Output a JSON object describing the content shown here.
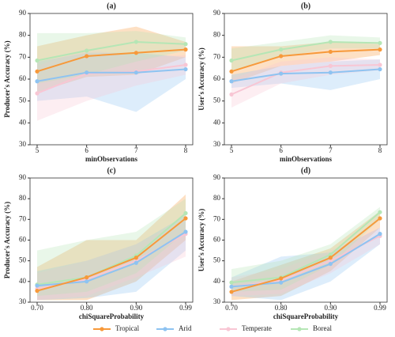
{
  "chart_data": [
    {
      "type": "line",
      "title": "(a)",
      "x_label": "minObservations",
      "y_label": "Producer's Accuracy (%)",
      "categories": [
        "5",
        "6",
        "7",
        "8"
      ],
      "ylim": [
        30,
        90
      ],
      "yticks": [
        30,
        40,
        50,
        60,
        70,
        80,
        90
      ],
      "series": [
        {
          "name": "Tropical",
          "color": "#f7993a",
          "values": [
            63.5,
            70.5,
            72,
            73.5
          ],
          "lower": [
            54,
            61,
            62,
            70
          ],
          "upper": [
            75,
            80,
            84,
            77
          ]
        },
        {
          "name": "Arid",
          "color": "#8ec3f1",
          "values": [
            59,
            63,
            63,
            64.5
          ],
          "lower": [
            50,
            52,
            45,
            60
          ],
          "upper": [
            68,
            72,
            72,
            70
          ]
        },
        {
          "name": "Temperate",
          "color": "#f8c6d4",
          "values": [
            53.5,
            62.5,
            63.5,
            66.5
          ],
          "lower": [
            41,
            50,
            57,
            62
          ],
          "upper": [
            66,
            74,
            70,
            71
          ]
        },
        {
          "name": "Boreal",
          "color": "#b5e6b5",
          "values": [
            68.5,
            73,
            77,
            76
          ],
          "lower": [
            58,
            62,
            68,
            73
          ],
          "upper": [
            81,
            81,
            82,
            79
          ]
        }
      ]
    },
    {
      "type": "line",
      "title": "(b)",
      "x_label": "minObservations",
      "y_label": "User's Accuracy (%)",
      "categories": [
        "5",
        "6",
        "7",
        "8"
      ],
      "ylim": [
        30,
        90
      ],
      "yticks": [
        30,
        40,
        50,
        60,
        70,
        80,
        90
      ],
      "series": [
        {
          "name": "Tropical",
          "color": "#f7993a",
          "values": [
            63.5,
            70.5,
            72.5,
            73.5
          ],
          "lower": [
            58,
            66,
            68,
            71
          ],
          "upper": [
            75,
            75,
            77,
            76
          ]
        },
        {
          "name": "Arid",
          "color": "#8ec3f1",
          "values": [
            59,
            62.5,
            63,
            64.5
          ],
          "lower": [
            56,
            58,
            55,
            60
          ],
          "upper": [
            62,
            66,
            68,
            69
          ]
        },
        {
          "name": "Temperate",
          "color": "#f8c6d4",
          "values": [
            53,
            63,
            66,
            66.5
          ],
          "lower": [
            47,
            58,
            62,
            64
          ],
          "upper": [
            60,
            68,
            70,
            69
          ]
        },
        {
          "name": "Boreal",
          "color": "#b5e6b5",
          "values": [
            68.5,
            73.5,
            77,
            76.5
          ],
          "lower": [
            64,
            70,
            74,
            74
          ],
          "upper": [
            74,
            77,
            80,
            79
          ]
        }
      ]
    },
    {
      "type": "line",
      "title": "(c)",
      "x_label": "chiSquareProbability",
      "y_label": "Producer's Accuracy (%)",
      "categories": [
        "0.70",
        "0.80",
        "0.90",
        "0.99"
      ],
      "ylim": [
        30,
        90
      ],
      "yticks": [
        30,
        40,
        50,
        60,
        70,
        80,
        90
      ],
      "series": [
        {
          "name": "Tropical",
          "color": "#f7993a",
          "values": [
            35.5,
            42,
            51.5,
            70.5
          ],
          "lower": [
            31,
            31,
            40,
            60
          ],
          "upper": [
            47,
            60,
            60,
            82
          ]
        },
        {
          "name": "Arid",
          "color": "#8ec3f1",
          "values": [
            38,
            40,
            49,
            64
          ],
          "lower": [
            31,
            32,
            35,
            55
          ],
          "upper": [
            45,
            50,
            58,
            72
          ]
        },
        {
          "name": "Temperate",
          "color": "#f8c6d4",
          "values": [
            36.5,
            41,
            50,
            63
          ],
          "lower": [
            31,
            33,
            42,
            52
          ],
          "upper": [
            44,
            50,
            58,
            70
          ]
        },
        {
          "name": "Boreal",
          "color": "#b5e6b5",
          "values": [
            38.5,
            42,
            52.5,
            73
          ],
          "lower": [
            33,
            35,
            44,
            64
          ],
          "upper": [
            55,
            60,
            64,
            80
          ]
        }
      ]
    },
    {
      "type": "line",
      "title": "(d)",
      "x_label": "chiSquareProbability",
      "y_label": "User's Accuracy (%)",
      "categories": [
        "0.70",
        "0.80",
        "0.90",
        "0.99"
      ],
      "ylim": [
        30,
        90
      ],
      "yticks": [
        30,
        40,
        50,
        60,
        70,
        80,
        90
      ],
      "series": [
        {
          "name": "Tropical",
          "color": "#f7993a",
          "values": [
            35,
            41.5,
            51.5,
            70.5
          ],
          "lower": [
            31,
            33,
            45,
            66
          ],
          "upper": [
            40,
            48,
            56,
            74
          ]
        },
        {
          "name": "Arid",
          "color": "#8ec3f1",
          "values": [
            37.5,
            39.5,
            48.5,
            63
          ],
          "lower": [
            33,
            31,
            40,
            58
          ],
          "upper": [
            42,
            52,
            54,
            66
          ]
        },
        {
          "name": "Temperate",
          "color": "#f8c6d4",
          "values": [
            37.5,
            40.5,
            50,
            62
          ],
          "lower": [
            33,
            34,
            44,
            58
          ],
          "upper": [
            42,
            46,
            55,
            66
          ]
        },
        {
          "name": "Boreal",
          "color": "#b5e6b5",
          "values": [
            39.5,
            42,
            53,
            73.5
          ],
          "lower": [
            35,
            36,
            48,
            70
          ],
          "upper": [
            46,
            50,
            58,
            76
          ]
        }
      ]
    }
  ]
}
